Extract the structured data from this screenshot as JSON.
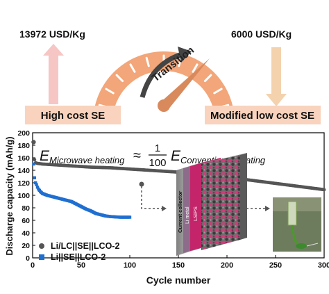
{
  "header": {
    "left_price": "13972 USD/Kg",
    "right_price": "6000 USD/Kg",
    "left_box": "High cost SE",
    "right_box": "Modified low cost SE",
    "gauge_word": "Transition",
    "colors": {
      "gauge": "#f2a679",
      "box": "#f9d3bd",
      "left_arrow": "#f6c6c4",
      "right_arrow": "#f3d2ad",
      "needle": "#d88a5d",
      "curve_arrow": "#444444"
    }
  },
  "equation": {
    "lhs_E": "E",
    "lhs_sub": "Microwave heating",
    "approx": "≈",
    "num": "1",
    "den": "100",
    "rhs_E": "E",
    "rhs_sub": "Conventional heating"
  },
  "inset": {
    "collector": "Current collector",
    "li_metal": "Li metal",
    "lsips": "LSiPS"
  },
  "chart_data": {
    "type": "scatter",
    "xlabel": "Cycle number",
    "ylabel": "Discharge capacity (mAh/g)",
    "xlim": [
      0,
      300
    ],
    "ylim": [
      0,
      200
    ],
    "xticks": [
      "0",
      "50",
      "100",
      "150",
      "200",
      "250",
      "300"
    ],
    "yticks": [
      "0",
      "20",
      "40",
      "60",
      "80",
      "100",
      "120",
      "140",
      "160",
      "180",
      "200"
    ],
    "legend_position": "bottom-left",
    "series": [
      {
        "name": "Li/LC||SE||LCO-2",
        "marker": "circle",
        "color": "#555555",
        "x": [
          1,
          2,
          3,
          5,
          10,
          20,
          30,
          40,
          50,
          60,
          70,
          80,
          90,
          100,
          110,
          120,
          130,
          140,
          150,
          160,
          170,
          180,
          190,
          200,
          210,
          220,
          230,
          240,
          250,
          260,
          270,
          280,
          290,
          300
        ],
        "y": [
          185,
          157,
          152,
          151,
          150,
          149,
          148,
          147,
          146,
          145,
          144.5,
          144,
          143,
          142,
          141,
          140,
          139,
          138,
          137,
          136,
          135,
          133,
          131,
          129,
          127,
          125,
          123,
          121,
          119,
          117,
          115,
          113,
          111,
          109
        ]
      },
      {
        "name": "Li||SE||LCO-2",
        "marker": "square",
        "color": "#1f6fd1",
        "x": [
          1,
          2,
          3,
          4,
          5,
          6,
          8,
          10,
          15,
          20,
          25,
          30,
          35,
          40,
          45,
          50,
          55,
          60,
          65,
          70,
          75,
          80,
          85,
          90,
          95,
          100
        ],
        "y": [
          150,
          128,
          120,
          117,
          113,
          110,
          106,
          103,
          100,
          98,
          96,
          94,
          92,
          90,
          86,
          82,
          78,
          75,
          71,
          69,
          67,
          66,
          65.5,
          65,
          65,
          65
        ]
      }
    ]
  }
}
